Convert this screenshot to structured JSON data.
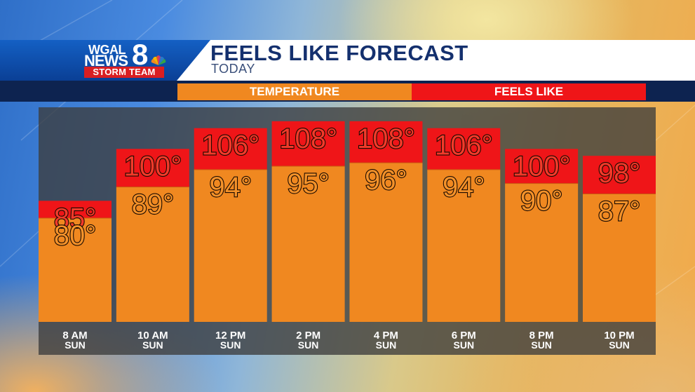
{
  "header": {
    "title": "FEELS LIKE FORECAST",
    "subtitle": "TODAY"
  },
  "logo": {
    "line1": "WGAL",
    "line2": "NEWS",
    "number": "8",
    "tagline": "STORM TEAM",
    "icon": "peacock-icon"
  },
  "legend": {
    "temperature_label": "TEMPERATURE",
    "feels_like_label": "FEELS LIKE"
  },
  "colors": {
    "temperature": "#f08820",
    "feels_like": "#ef1518",
    "header_blue": "#0a3f95",
    "title_text": "#14306e"
  },
  "chart_data": {
    "type": "bar",
    "categories": [
      "8 AM",
      "10 AM",
      "12 PM",
      "2 PM",
      "4 PM",
      "6 PM",
      "8 PM",
      "10 PM"
    ],
    "days": [
      "SUN",
      "SUN",
      "SUN",
      "SUN",
      "SUN",
      "SUN",
      "SUN",
      "SUN"
    ],
    "series": [
      {
        "name": "TEMPERATURE",
        "values": [
          80,
          89,
          94,
          95,
          96,
          94,
          90,
          87
        ]
      },
      {
        "name": "FEELS LIKE",
        "values": [
          85,
          100,
          106,
          108,
          108,
          106,
          100,
          98
        ]
      }
    ],
    "value_labels": {
      "temperature": [
        "80°",
        "89°",
        "94°",
        "95°",
        "96°",
        "94°",
        "90°",
        "87°"
      ],
      "feels_like": [
        "85°",
        "100°",
        "106°",
        "108°",
        "108°",
        "106°",
        "100°",
        "98°"
      ]
    },
    "title": "FEELS LIKE FORECAST",
    "xlabel": "",
    "ylabel": "",
    "ylim": [
      50,
      110
    ],
    "legend": "top"
  }
}
